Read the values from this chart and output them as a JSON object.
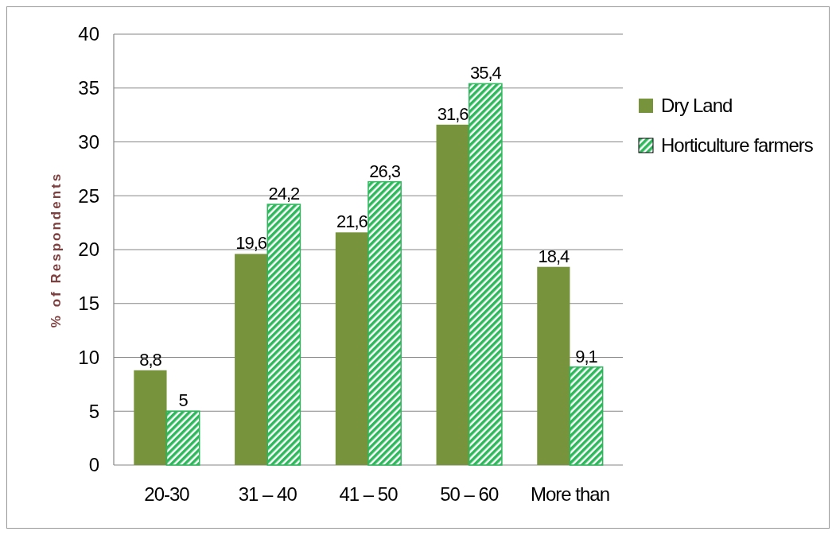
{
  "chart_data": {
    "type": "bar",
    "ylabel": "% of Respondents",
    "categories": [
      "20-30",
      "31 – 40",
      "41 – 50",
      "50 – 60",
      "More than"
    ],
    "series": [
      {
        "name": "Dry Land",
        "color": "#77933c",
        "values": [
          8.8,
          19.6,
          21.6,
          31.6,
          18.4
        ],
        "value_labels": [
          "8,8",
          "19,6",
          "21,6",
          "31,6",
          "18,4"
        ]
      },
      {
        "name": "Horticulture farmers",
        "color": "#2eb85c",
        "values": [
          5,
          24.2,
          26.3,
          35.4,
          9.1
        ],
        "value_labels": [
          "5",
          "24,2",
          "26,3",
          "35,4",
          "9,1"
        ]
      }
    ],
    "ylim": [
      0,
      40
    ],
    "yticks": [
      0,
      5,
      10,
      15,
      20,
      25,
      30,
      35,
      40
    ],
    "grid": "y",
    "legend": "right"
  }
}
